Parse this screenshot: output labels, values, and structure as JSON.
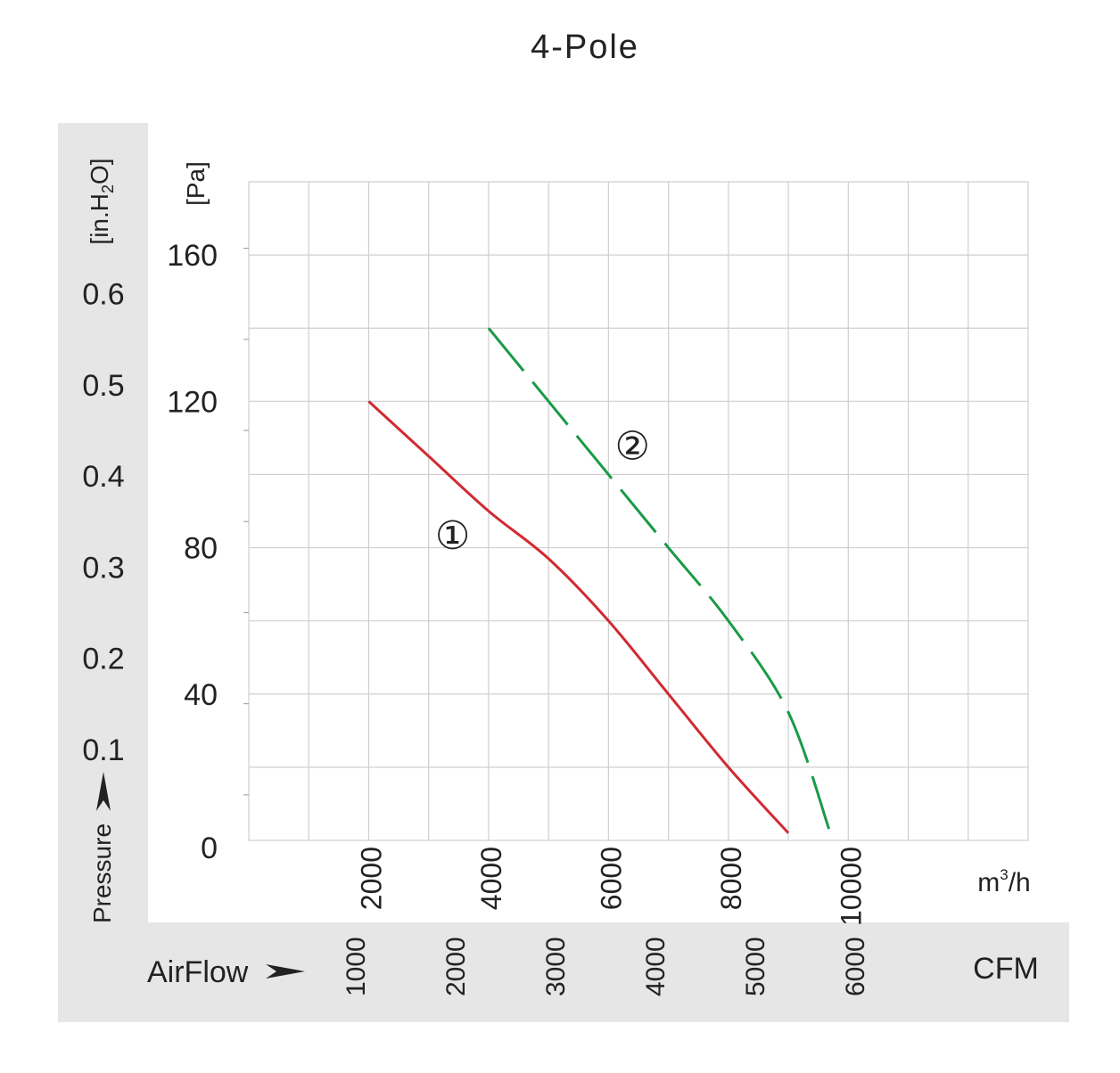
{
  "chart_data": {
    "type": "line",
    "title": "4-Pole",
    "x_unit": "m³/h",
    "x_unit_base": "m",
    "x_unit_sup": "3",
    "x_unit_rest": "/h",
    "x_ticks": [
      2000,
      4000,
      6000,
      8000,
      10000
    ],
    "cfm_label": "CFM",
    "cfm_ticks": [
      "1000",
      "2000",
      "3000",
      "4000",
      "5000",
      "6000"
    ],
    "airflow_label": "AirFlow",
    "pressure_label": "Pressure",
    "y_unit": "[Pa]",
    "y_ticks": [
      0,
      40,
      80,
      120,
      160
    ],
    "y2_unit": "[in.H₂O]",
    "y2_unit_pre": "[in.H",
    "y2_unit_sub": "2",
    "y2_unit_post": "O]",
    "y2_ticks": [
      "0.1",
      "0.2",
      "0.3",
      "0.4",
      "0.5",
      "0.6"
    ],
    "xlim": [
      0,
      13000
    ],
    "ylim": [
      0,
      180
    ],
    "grid": true,
    "series": [
      {
        "label": "①",
        "color": "#d12a32",
        "dash": "solid",
        "x": [
          2000,
          3000,
          4000,
          5000,
          6000,
          7000,
          8000,
          9000
        ],
        "y": [
          120,
          105,
          90,
          77,
          60,
          40,
          20,
          2
        ]
      },
      {
        "label": "②",
        "color": "#1a9a46",
        "dash": "dashed",
        "x": [
          4000,
          5000,
          6000,
          7000,
          8000,
          9000,
          9700
        ],
        "y": [
          140,
          120,
          100,
          80,
          60,
          35,
          2
        ]
      }
    ]
  }
}
